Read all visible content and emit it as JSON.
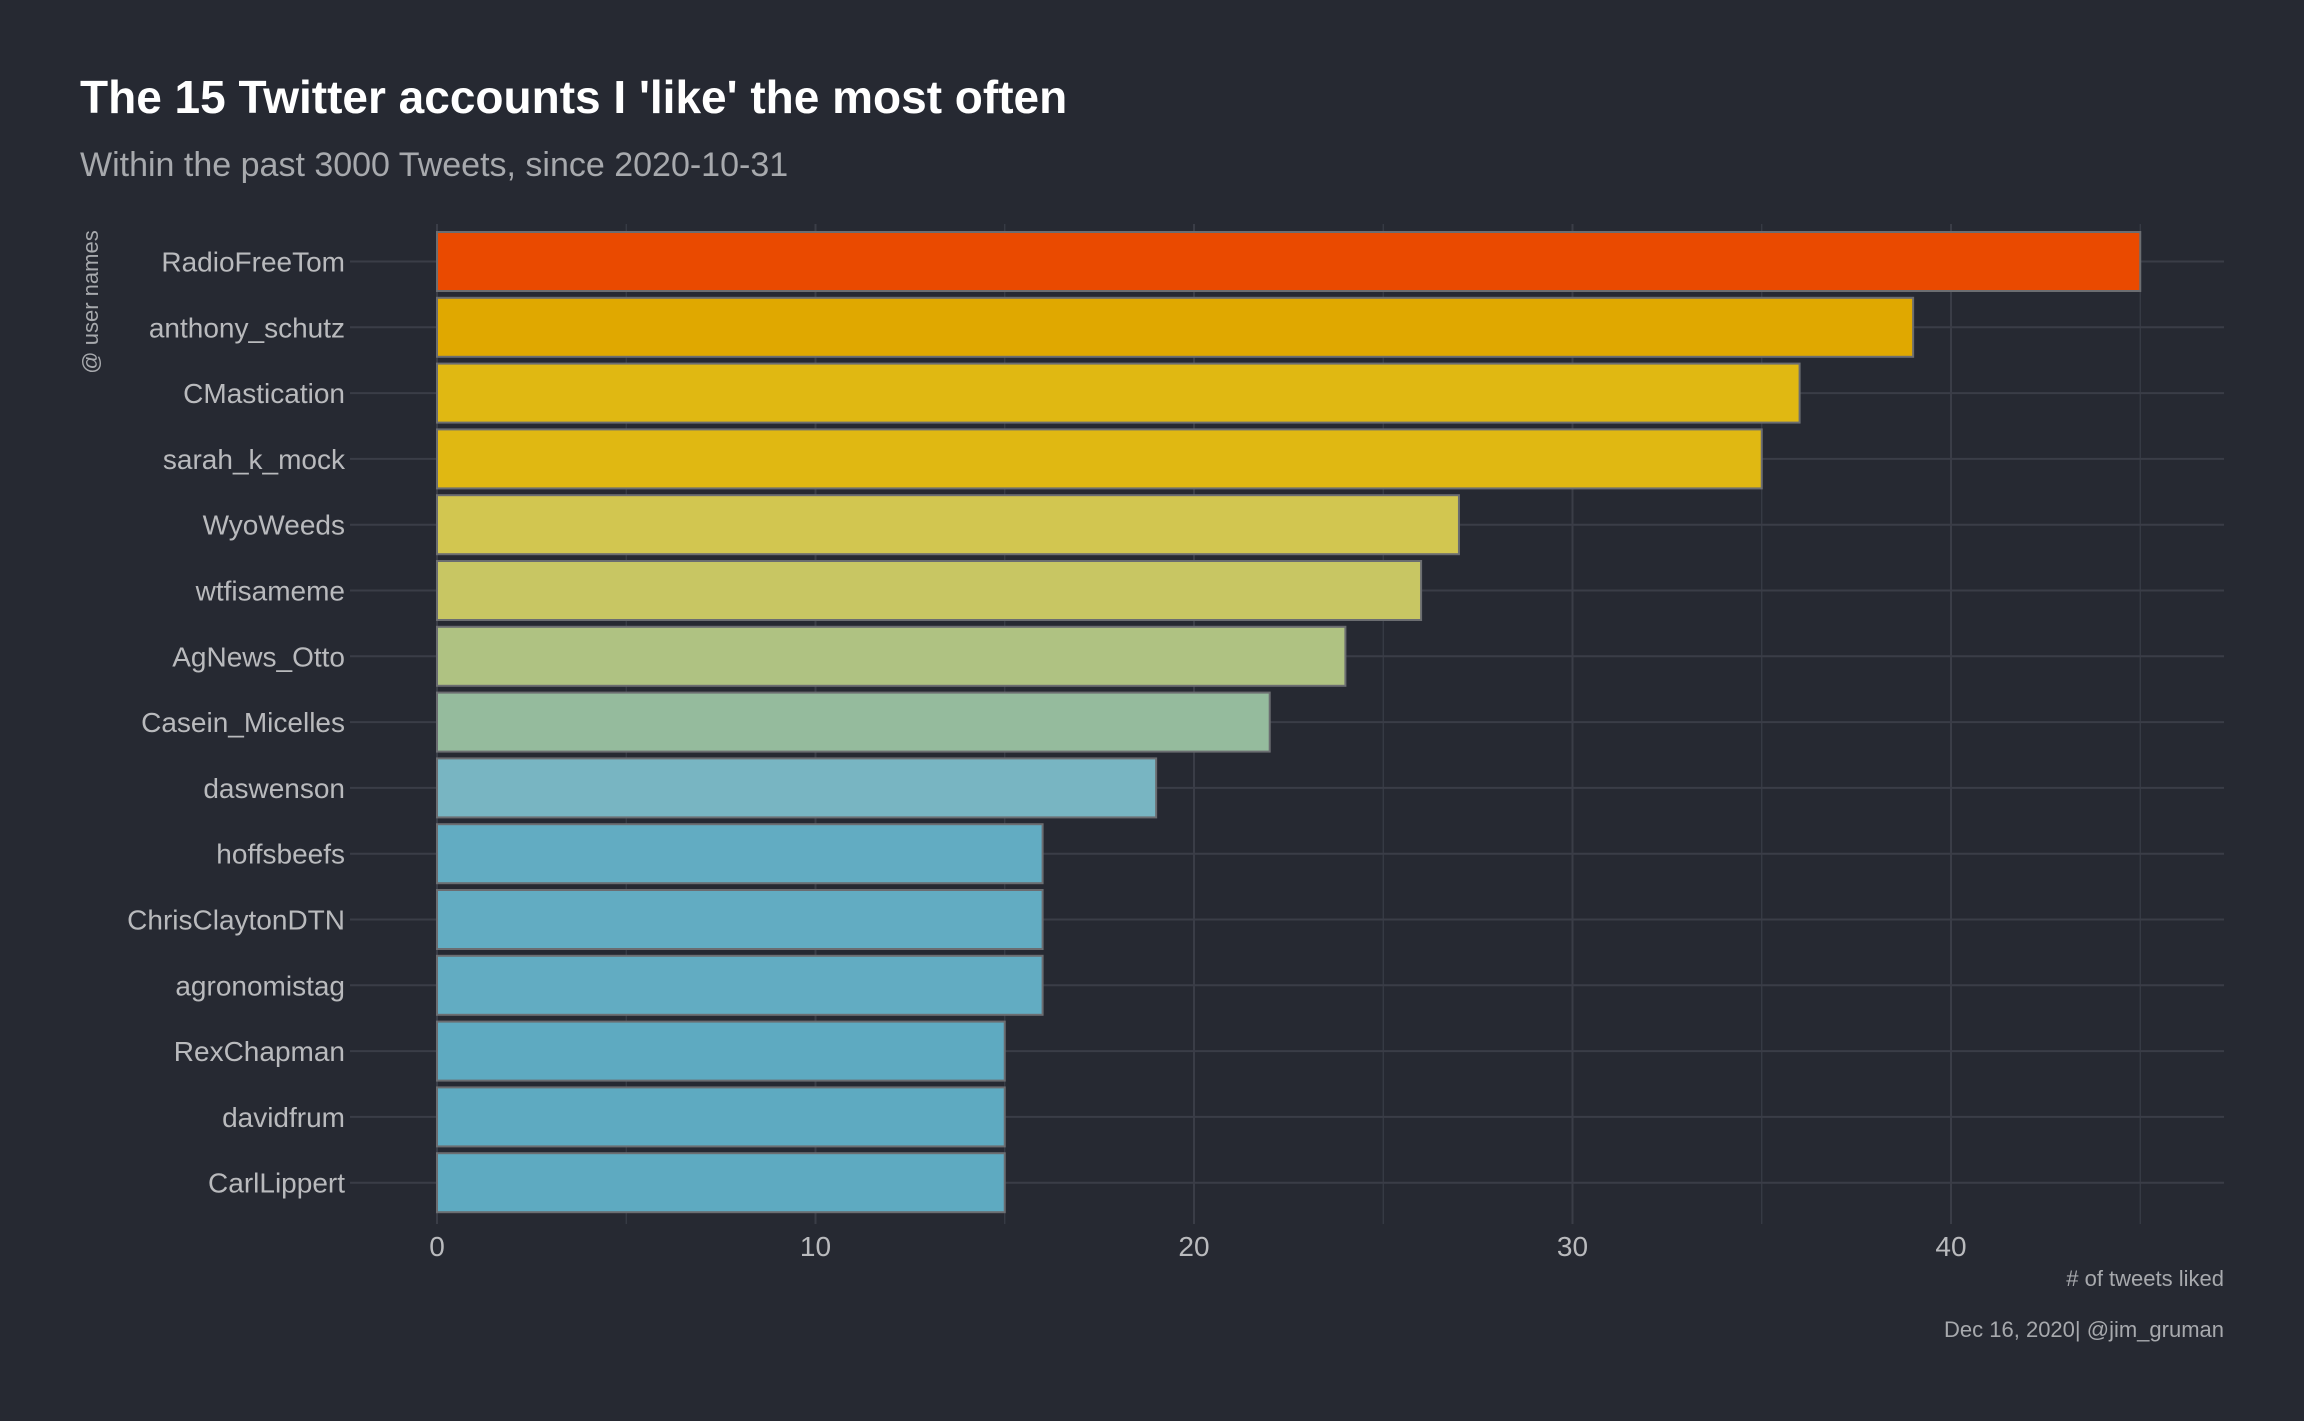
{
  "chart_data": {
    "type": "bar",
    "orientation": "horizontal",
    "title": "The 15 Twitter accounts I 'like' the most often",
    "subtitle": "Within the past 3000 Tweets, since 2020-10-31",
    "xlabel": "# of tweets liked",
    "ylabel": "@ user names",
    "caption": "Dec 16, 2020|  @jim_gruman",
    "xlim": [
      0,
      47
    ],
    "xticks": [
      0,
      10,
      20,
      30,
      40
    ],
    "grid": true,
    "legend": "none",
    "categories": [
      "RadioFreeTom",
      "anthony_schutz",
      "CMastication",
      "sarah_k_mock",
      "WyoWeeds",
      "wtfisameme",
      "AgNews_Otto",
      "Casein_Micelles",
      "daswenson",
      "hoffsbeefs",
      "ChrisClaytonDTN",
      "agronomistag",
      "RexChapman",
      "davidfrum",
      "CarlLippert"
    ],
    "values": [
      45,
      39,
      36,
      35,
      27,
      26,
      24,
      22,
      19,
      16,
      16,
      16,
      15,
      15,
      15
    ],
    "colors": [
      "#EA4A00",
      "#E0A800",
      "#E0B812",
      "#E0B812",
      "#D2C650",
      "#C8C663",
      "#AFC282",
      "#95BB9D",
      "#78B5C2",
      "#62ACC2",
      "#62ACC2",
      "#62ACC2",
      "#5EAAC1",
      "#5EAAC1",
      "#5EAAC1"
    ],
    "bar_outline_color": "#6b6d71",
    "background_color": "#262932",
    "grid_color": "#3a3d47"
  }
}
